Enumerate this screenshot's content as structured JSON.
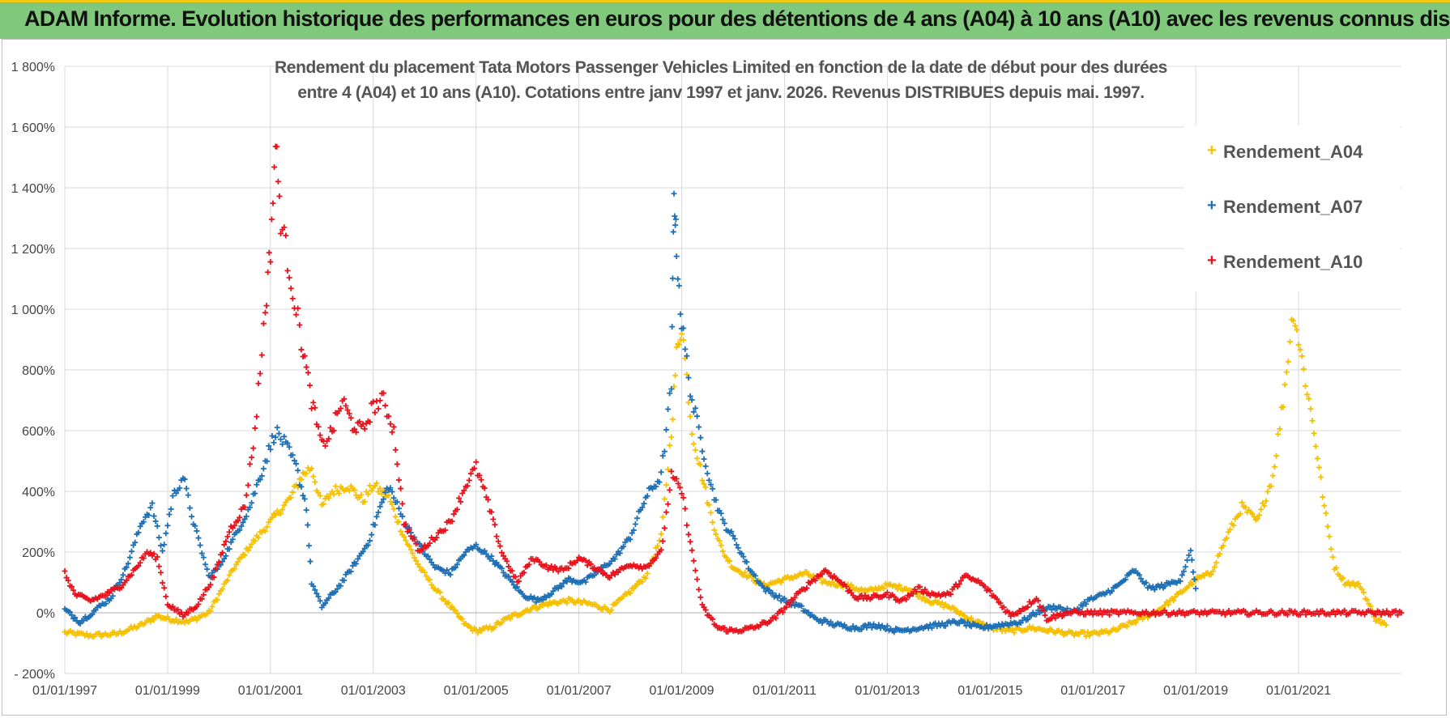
{
  "banner": {
    "title": "ADAM Informe. Evolution historique des performances en euros pour des détentions de 4 ans (A04) à 10 ans (A10) avec les revenus connus distribués"
  },
  "chart_data": {
    "type": "scatter",
    "title_line1": "Rendement du placement Tata Motors Passenger Vehicles Limited en fonction de la date de début pour des durées",
    "title_line2": "entre 4 (A04) et 10 ans (A10).  Cotations entre janv 1997 et janv. 2026. Revenus DISTRIBUES depuis mai. 1997.",
    "xlabel": "",
    "ylabel": "",
    "x_range": [
      "1997-01-01",
      "2023-01-01"
    ],
    "ylim": [
      -200,
      1800
    ],
    "y_ticks": [
      "- 200%",
      "0%",
      "200%",
      "400%",
      "600%",
      "800%",
      "1 000%",
      "1 200%",
      "1 400%",
      "1 600%",
      "1 800%"
    ],
    "x_ticks": [
      "01/01/1997",
      "01/01/1999",
      "01/01/2001",
      "01/01/2003",
      "01/01/2005",
      "01/01/2007",
      "01/01/2009",
      "01/01/2011",
      "01/01/2013",
      "01/01/2015",
      "01/01/2017",
      "01/01/2019",
      "01/01/2021"
    ],
    "grid": true,
    "legend_position": "right",
    "series": [
      {
        "name": "Rendement_A04",
        "color": "#f5c000",
        "points": [
          [
            1997.0,
            -65
          ],
          [
            1997.5,
            -75
          ],
          [
            1998.0,
            -70
          ],
          [
            1998.5,
            -40
          ],
          [
            1998.8,
            -10
          ],
          [
            1999.0,
            -20
          ],
          [
            1999.4,
            -30
          ],
          [
            1999.8,
            0
          ],
          [
            2000.0,
            60
          ],
          [
            2000.3,
            150
          ],
          [
            2000.6,
            220
          ],
          [
            2000.9,
            280
          ],
          [
            2001.1,
            320
          ],
          [
            2001.4,
            380
          ],
          [
            2001.6,
            450
          ],
          [
            2001.8,
            480
          ],
          [
            2002.0,
            350
          ],
          [
            2002.2,
            400
          ],
          [
            2002.5,
            420
          ],
          [
            2002.8,
            370
          ],
          [
            2003.0,
            420
          ],
          [
            2003.3,
            380
          ],
          [
            2003.6,
            250
          ],
          [
            2003.9,
            150
          ],
          [
            2004.2,
            80
          ],
          [
            2004.5,
            20
          ],
          [
            2004.8,
            -40
          ],
          [
            2005.0,
            -60
          ],
          [
            2005.3,
            -50
          ],
          [
            2005.6,
            -20
          ],
          [
            2006.0,
            10
          ],
          [
            2006.4,
            30
          ],
          [
            2006.8,
            40
          ],
          [
            2007.2,
            30
          ],
          [
            2007.6,
            10
          ],
          [
            2008.0,
            70
          ],
          [
            2008.3,
            120
          ],
          [
            2008.6,
            250
          ],
          [
            2008.8,
            600
          ],
          [
            2008.9,
            850
          ],
          [
            2009.0,
            950
          ],
          [
            2009.2,
            600
          ],
          [
            2009.4,
            450
          ],
          [
            2009.6,
            300
          ],
          [
            2009.8,
            200
          ],
          [
            2010.0,
            150
          ],
          [
            2010.3,
            120
          ],
          [
            2010.6,
            90
          ],
          [
            2011.0,
            110
          ],
          [
            2011.4,
            130
          ],
          [
            2011.8,
            100
          ],
          [
            2012.2,
            90
          ],
          [
            2012.6,
            70
          ],
          [
            2013.0,
            90
          ],
          [
            2013.4,
            80
          ],
          [
            2013.8,
            40
          ],
          [
            2014.2,
            20
          ],
          [
            2014.6,
            -20
          ],
          [
            2015.0,
            -50
          ],
          [
            2015.4,
            -60
          ],
          [
            2015.8,
            -50
          ],
          [
            2016.2,
            -60
          ],
          [
            2016.6,
            -70
          ],
          [
            2017.0,
            -70
          ],
          [
            2017.4,
            -60
          ],
          [
            2017.8,
            -30
          ],
          [
            2018.2,
            0
          ],
          [
            2018.6,
            50
          ],
          [
            2019.0,
            110
          ],
          [
            2019.3,
            130
          ],
          [
            2019.6,
            250
          ],
          [
            2019.9,
            350
          ],
          [
            2020.2,
            300
          ],
          [
            2020.5,
            450
          ],
          [
            2020.7,
            700
          ],
          [
            2020.9,
            1000
          ],
          [
            2021.1,
            800
          ],
          [
            2021.3,
            600
          ],
          [
            2021.5,
            350
          ],
          [
            2021.7,
            150
          ],
          [
            2021.9,
            100
          ],
          [
            2022.2,
            90
          ],
          [
            2022.5,
            -20
          ],
          [
            2022.7,
            -40
          ]
        ]
      },
      {
        "name": "Rendement_A07",
        "color": "#1f6fb4",
        "points": [
          [
            1997.0,
            10
          ],
          [
            1997.3,
            -30
          ],
          [
            1997.6,
            10
          ],
          [
            1997.9,
            50
          ],
          [
            1998.2,
            150
          ],
          [
            1998.5,
            300
          ],
          [
            1998.7,
            350
          ],
          [
            1998.9,
            200
          ],
          [
            1999.1,
            380
          ],
          [
            1999.3,
            450
          ],
          [
            1999.5,
            300
          ],
          [
            1999.8,
            120
          ],
          [
            2000.0,
            150
          ],
          [
            2000.3,
            250
          ],
          [
            2000.6,
            350
          ],
          [
            2000.9,
            500
          ],
          [
            2001.1,
            600
          ],
          [
            2001.3,
            550
          ],
          [
            2001.5,
            480
          ],
          [
            2001.7,
            350
          ],
          [
            2001.8,
            100
          ],
          [
            2002.0,
            20
          ],
          [
            2002.3,
            80
          ],
          [
            2002.6,
            150
          ],
          [
            2002.9,
            230
          ],
          [
            2003.1,
            330
          ],
          [
            2003.3,
            420
          ],
          [
            2003.6,
            300
          ],
          [
            2003.9,
            220
          ],
          [
            2004.2,
            150
          ],
          [
            2004.5,
            130
          ],
          [
            2004.8,
            200
          ],
          [
            2005.0,
            220
          ],
          [
            2005.3,
            180
          ],
          [
            2005.6,
            120
          ],
          [
            2005.9,
            60
          ],
          [
            2006.2,
            40
          ],
          [
            2006.5,
            70
          ],
          [
            2006.8,
            110
          ],
          [
            2007.1,
            100
          ],
          [
            2007.4,
            140
          ],
          [
            2007.7,
            180
          ],
          [
            2008.0,
            250
          ],
          [
            2008.3,
            380
          ],
          [
            2008.6,
            450
          ],
          [
            2008.8,
            750
          ],
          [
            2008.85,
            1400
          ],
          [
            2008.9,
            1200
          ],
          [
            2009.0,
            950
          ],
          [
            2009.2,
            700
          ],
          [
            2009.4,
            550
          ],
          [
            2009.6,
            400
          ],
          [
            2009.8,
            300
          ],
          [
            2010.0,
            250
          ],
          [
            2010.3,
            150
          ],
          [
            2010.6,
            80
          ],
          [
            2011.0,
            40
          ],
          [
            2011.3,
            20
          ],
          [
            2011.6,
            -20
          ],
          [
            2012.0,
            -40
          ],
          [
            2012.4,
            -50
          ],
          [
            2012.8,
            -40
          ],
          [
            2013.2,
            -60
          ],
          [
            2013.6,
            -50
          ],
          [
            2014.0,
            -40
          ],
          [
            2014.4,
            -30
          ],
          [
            2014.8,
            -50
          ],
          [
            2015.2,
            -40
          ],
          [
            2015.6,
            -30
          ],
          [
            2016.0,
            10
          ],
          [
            2016.3,
            20
          ],
          [
            2016.6,
            0
          ],
          [
            2016.9,
            40
          ],
          [
            2017.2,
            60
          ],
          [
            2017.5,
            90
          ],
          [
            2017.8,
            140
          ],
          [
            2018.1,
            80
          ],
          [
            2018.4,
            90
          ],
          [
            2018.7,
            110
          ],
          [
            2018.9,
            200
          ],
          [
            2019.0,
            80
          ]
        ]
      },
      {
        "name": "Rendement_A10",
        "color": "#e8121c",
        "points": [
          [
            1997.0,
            130
          ],
          [
            1997.2,
            60
          ],
          [
            1997.5,
            40
          ],
          [
            1997.8,
            60
          ],
          [
            1998.1,
            90
          ],
          [
            1998.4,
            150
          ],
          [
            1998.6,
            200
          ],
          [
            1998.8,
            180
          ],
          [
            1999.0,
            30
          ],
          [
            1999.3,
            -10
          ],
          [
            1999.6,
            30
          ],
          [
            1999.9,
            120
          ],
          [
            2000.2,
            270
          ],
          [
            2000.5,
            350
          ],
          [
            2000.7,
            600
          ],
          [
            2000.9,
            1000
          ],
          [
            2001.0,
            1200
          ],
          [
            2001.1,
            1550
          ],
          [
            2001.2,
            1300
          ],
          [
            2001.4,
            1100
          ],
          [
            2001.6,
            900
          ],
          [
            2001.8,
            700
          ],
          [
            2002.0,
            550
          ],
          [
            2002.2,
            600
          ],
          [
            2002.4,
            700
          ],
          [
            2002.6,
            620
          ],
          [
            2002.8,
            600
          ],
          [
            2003.0,
            680
          ],
          [
            2003.2,
            700
          ],
          [
            2003.4,
            600
          ],
          [
            2003.6,
            300
          ],
          [
            2003.9,
            200
          ],
          [
            2004.2,
            250
          ],
          [
            2004.5,
            300
          ],
          [
            2004.8,
            420
          ],
          [
            2005.0,
            480
          ],
          [
            2005.2,
            380
          ],
          [
            2005.5,
            200
          ],
          [
            2005.8,
            100
          ],
          [
            2006.1,
            180
          ],
          [
            2006.4,
            150
          ],
          [
            2006.7,
            140
          ],
          [
            2007.0,
            180
          ],
          [
            2007.3,
            150
          ],
          [
            2007.6,
            120
          ],
          [
            2008.0,
            160
          ],
          [
            2008.3,
            150
          ],
          [
            2008.6,
            200
          ],
          [
            2008.8,
            450
          ],
          [
            2009.0,
            400
          ],
          [
            2009.2,
            200
          ],
          [
            2009.4,
            20
          ],
          [
            2009.7,
            -50
          ],
          [
            2010.0,
            -60
          ],
          [
            2010.4,
            -50
          ],
          [
            2010.8,
            -20
          ],
          [
            2011.2,
            50
          ],
          [
            2011.5,
            100
          ],
          [
            2011.8,
            140
          ],
          [
            2012.1,
            100
          ],
          [
            2012.4,
            50
          ],
          [
            2012.7,
            50
          ],
          [
            2013.0,
            60
          ],
          [
            2013.3,
            40
          ],
          [
            2013.6,
            80
          ],
          [
            2013.9,
            60
          ],
          [
            2014.2,
            60
          ],
          [
            2014.5,
            120
          ],
          [
            2014.8,
            100
          ],
          [
            2015.1,
            50
          ],
          [
            2015.4,
            -10
          ],
          [
            2015.7,
            20
          ],
          [
            2015.9,
            50
          ],
          [
            2016.1,
            -20
          ],
          [
            2016.5,
            0
          ],
          [
            2017.0,
            0
          ],
          [
            2017.5,
            0
          ],
          [
            2018.0,
            0
          ],
          [
            2018.5,
            0
          ],
          [
            2019.0,
            0
          ],
          [
            2019.5,
            0
          ],
          [
            2020.0,
            0
          ],
          [
            2020.5,
            0
          ],
          [
            2021.0,
            0
          ],
          [
            2021.5,
            0
          ],
          [
            2022.0,
            0
          ],
          [
            2022.5,
            0
          ],
          [
            2023.0,
            0
          ]
        ]
      }
    ]
  }
}
